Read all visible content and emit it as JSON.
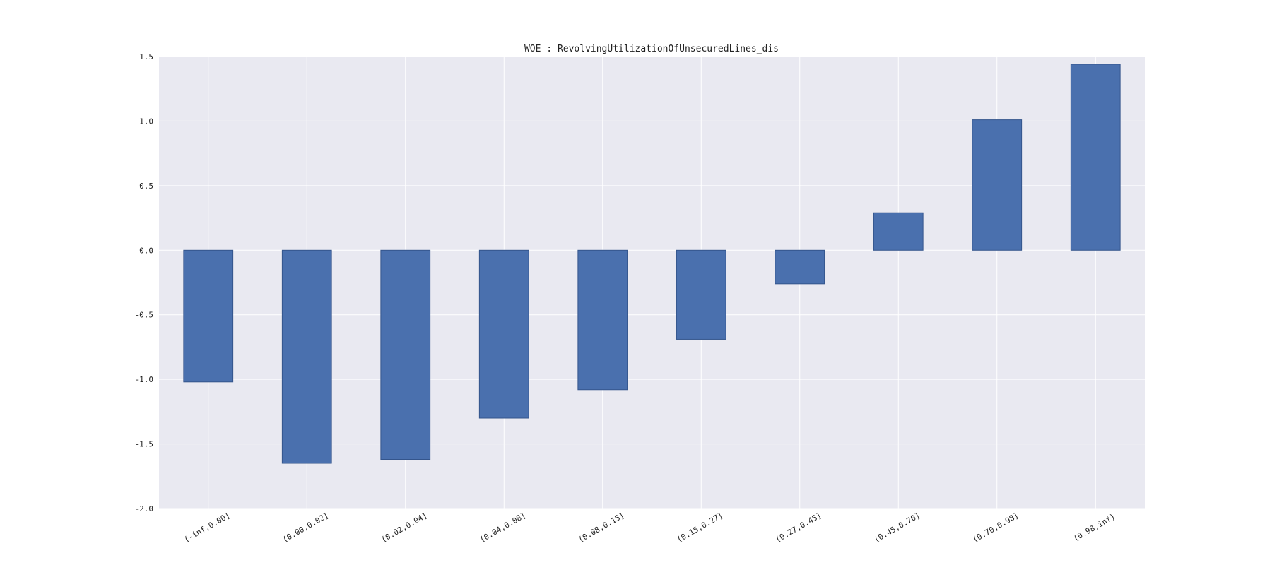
{
  "chart_data": {
    "type": "bar",
    "title": "WOE : RevolvingUtilizationOfUnsecuredLines_dis",
    "xlabel": "",
    "ylabel": "",
    "categories": [
      "(-inf,0.00]",
      "(0.00,0.02]",
      "(0.02,0.04]",
      "(0.04,0.08]",
      "(0.08,0.15]",
      "(0.15,0.27]",
      "(0.27,0.45]",
      "(0.45,0.70]",
      "(0.70,0.98]",
      "(0.98,inf)"
    ],
    "values": [
      -1.02,
      -1.65,
      -1.62,
      -1.3,
      -1.08,
      -0.69,
      -0.26,
      0.29,
      1.01,
      1.44
    ],
    "ylim": [
      -2.0,
      1.5
    ],
    "yticks": [
      -2.0,
      -1.5,
      -1.0,
      -0.5,
      0.0,
      0.5,
      1.0,
      1.5
    ],
    "ytick_labels": [
      "-2.0",
      "-1.5",
      "-1.0",
      "-0.5",
      "0.0",
      "0.5",
      "1.0",
      "1.5"
    ],
    "grid": true,
    "legend": "none",
    "colors": {
      "bar_fill": "#4a70ae",
      "bar_edge": "#34558c",
      "plot_background": "#e9e9f1",
      "grid": "#ffffff",
      "text": "#222222"
    }
  }
}
